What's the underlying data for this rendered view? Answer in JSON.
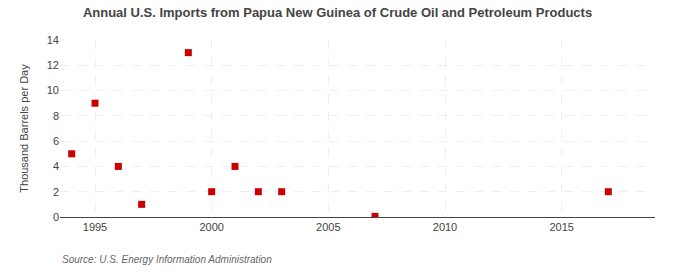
{
  "chart_data": {
    "type": "scatter",
    "title": "Annual U.S. Imports from Papua New Guinea of Crude Oil and Petroleum Products",
    "y_label": "Thousand Barrels per Day",
    "source": "Source: U.S. Energy Information Administration",
    "x": [
      1994,
      1995,
      1996,
      1997,
      1999,
      2000,
      2001,
      2002,
      2003,
      2007,
      2017
    ],
    "values": [
      5,
      9,
      4,
      1,
      13,
      2,
      4,
      2,
      2,
      0.05,
      2
    ],
    "color": "#cc0000",
    "marker": "square",
    "xlim": [
      1993.5,
      2019
    ],
    "xticks": [
      1995,
      2000,
      2005,
      2010,
      2015
    ],
    "ylim": [
      0,
      14
    ],
    "yticks": [
      0,
      2,
      4,
      6,
      8,
      10,
      12,
      14
    ],
    "grid": true
  }
}
